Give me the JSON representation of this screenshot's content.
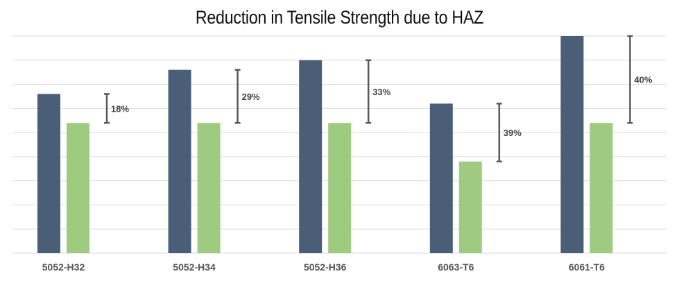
{
  "chart_data": {
    "type": "bar",
    "title": "Reduction in Tensile Strength due to HAZ",
    "xlabel": "",
    "ylabel": "",
    "categories": [
      "5052-H32",
      "5052-H34",
      "5052-H36",
      "6063-T6",
      "6061-T6"
    ],
    "series": [
      {
        "values": [
          33,
          38,
          40,
          31,
          45
        ],
        "color": "#4a5e78"
      },
      {
        "values": [
          27,
          27,
          27,
          19,
          27
        ],
        "color": "#9fcb80"
      }
    ],
    "reduction_labels": [
      "18%",
      "29%",
      "33%",
      "39%",
      "40%"
    ],
    "ylim": [
      0,
      45
    ],
    "gridlines": 9,
    "grid": true,
    "legend": "none"
  }
}
